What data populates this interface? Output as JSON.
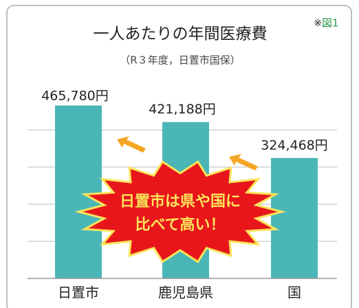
{
  "chart_data": {
    "type": "bar",
    "title": "一人あたりの年間医療費",
    "subtitle": "（R３年度，日置市国保）",
    "note_mark": "※",
    "note": "図1",
    "categories": [
      "日置市",
      "鹿児島県",
      "国"
    ],
    "values": [
      465780,
      421188,
      324468
    ],
    "value_labels": [
      "465,780円",
      "421,188円",
      "324,468円"
    ],
    "color": "#4bb6b6",
    "ylim": [
      0,
      500000
    ],
    "yticks": [
      100000,
      200000,
      300000,
      400000
    ],
    "grid": true,
    "annotation": [
      "日置市は県や国に",
      "比べて高い！"
    ]
  }
}
